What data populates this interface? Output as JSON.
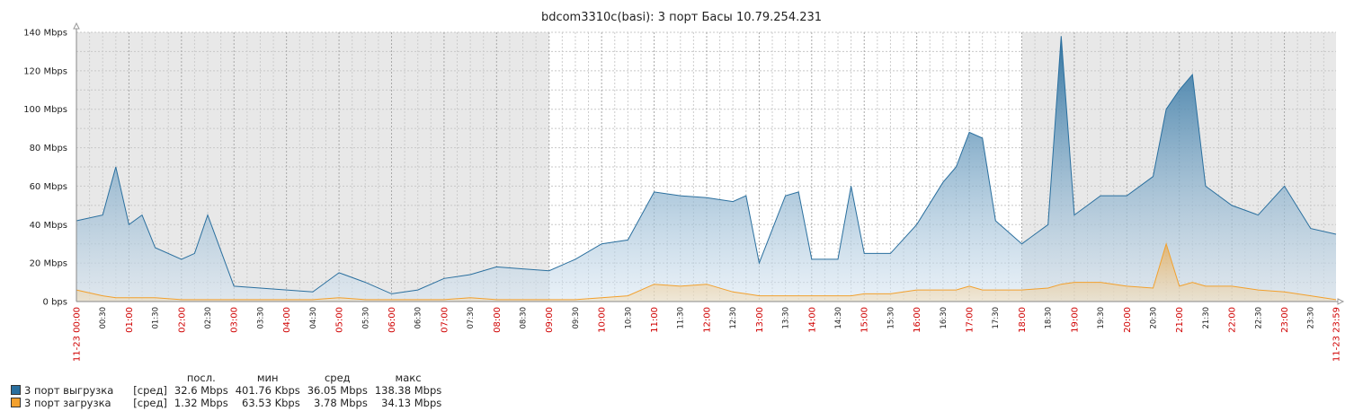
{
  "chart_data": {
    "type": "area",
    "title": "bdcom3310c(basi): 3 порт Басы 10.79.254.231",
    "y_unit": "Mbps",
    "ylim": [
      0,
      140
    ],
    "y_ticks": [
      {
        "value": 0,
        "label": "0 bps"
      },
      {
        "value": 20,
        "label": "20 Mbps"
      },
      {
        "value": 40,
        "label": "40 Mbps"
      },
      {
        "value": 60,
        "label": "60 Mbps"
      },
      {
        "value": 80,
        "label": "80 Mbps"
      },
      {
        "value": 100,
        "label": "100 Mbps"
      },
      {
        "value": 120,
        "label": "120 Mbps"
      },
      {
        "value": 140,
        "label": "140 Mbps"
      }
    ],
    "x_range": [
      "00:00",
      "23:59"
    ],
    "x_start_label": "11-23 00:00",
    "x_end_label": "11-23 23:59",
    "x_ticks": [
      "00:30",
      "01:00",
      "01:30",
      "02:00",
      "02:30",
      "03:00",
      "03:30",
      "04:00",
      "04:30",
      "05:00",
      "05:30",
      "06:00",
      "06:30",
      "07:00",
      "07:30",
      "08:00",
      "08:30",
      "09:00",
      "09:30",
      "10:00",
      "10:30",
      "11:00",
      "11:30",
      "12:00",
      "12:30",
      "13:00",
      "13:30",
      "14:00",
      "14:30",
      "15:00",
      "15:30",
      "16:00",
      "16:30",
      "17:00",
      "17:30",
      "18:00",
      "18:30",
      "19:00",
      "19:30",
      "20:00",
      "20:30",
      "21:00",
      "21:30",
      "22:00",
      "22:30",
      "23:00",
      "23:30"
    ],
    "non_working_time": [
      [
        "00:00",
        "09:00"
      ],
      [
        "18:00",
        "23:59"
      ]
    ],
    "grid": true,
    "series": [
      {
        "name": "3 порт выгрузка",
        "color": "#2a6f9e",
        "x": [
          "00:00",
          "00:30",
          "00:45",
          "01:00",
          "01:15",
          "01:30",
          "02:00",
          "02:15",
          "02:30",
          "03:00",
          "03:30",
          "04:00",
          "04:30",
          "05:00",
          "05:30",
          "06:00",
          "06:30",
          "07:00",
          "07:30",
          "08:00",
          "08:30",
          "09:00",
          "09:30",
          "10:00",
          "10:30",
          "11:00",
          "11:30",
          "12:00",
          "12:30",
          "12:45",
          "13:00",
          "13:30",
          "13:45",
          "14:00",
          "14:30",
          "14:45",
          "15:00",
          "15:30",
          "16:00",
          "16:30",
          "16:45",
          "17:00",
          "17:15",
          "17:30",
          "18:00",
          "18:30",
          "18:45",
          "19:00",
          "19:30",
          "20:00",
          "20:30",
          "20:45",
          "21:00",
          "21:15",
          "21:30",
          "22:00",
          "22:30",
          "23:00",
          "23:30",
          "23:59"
        ],
        "values": [
          42,
          45,
          70,
          40,
          45,
          28,
          22,
          25,
          45,
          8,
          7,
          6,
          5,
          15,
          10,
          4,
          6,
          12,
          14,
          18,
          17,
          16,
          22,
          30,
          32,
          57,
          55,
          54,
          52,
          55,
          20,
          55,
          57,
          22,
          22,
          60,
          25,
          25,
          40,
          62,
          70,
          88,
          85,
          42,
          30,
          40,
          138,
          45,
          55,
          55,
          65,
          100,
          110,
          118,
          60,
          50,
          45,
          60,
          38,
          35
        ]
      },
      {
        "name": "3 порт загрузка",
        "color": "#f2a02d",
        "x": [
          "00:00",
          "00:30",
          "00:45",
          "01:00",
          "01:15",
          "01:30",
          "02:00",
          "02:15",
          "02:30",
          "03:00",
          "03:30",
          "04:00",
          "04:30",
          "05:00",
          "05:30",
          "06:00",
          "06:30",
          "07:00",
          "07:30",
          "08:00",
          "08:30",
          "09:00",
          "09:30",
          "10:00",
          "10:30",
          "11:00",
          "11:30",
          "12:00",
          "12:30",
          "12:45",
          "13:00",
          "13:30",
          "13:45",
          "14:00",
          "14:30",
          "14:45",
          "15:00",
          "15:30",
          "16:00",
          "16:30",
          "16:45",
          "17:00",
          "17:15",
          "17:30",
          "18:00",
          "18:30",
          "18:45",
          "19:00",
          "19:30",
          "20:00",
          "20:30",
          "20:45",
          "21:00",
          "21:15",
          "21:30",
          "22:00",
          "22:30",
          "23:00",
          "23:30",
          "23:59"
        ],
        "values": [
          6,
          3,
          2,
          2,
          2,
          2,
          1,
          1,
          1,
          1,
          1,
          1,
          1,
          2,
          1,
          1,
          1,
          1,
          2,
          1,
          1,
          1,
          1,
          2,
          3,
          9,
          8,
          9,
          5,
          4,
          3,
          3,
          3,
          3,
          3,
          3,
          4,
          4,
          6,
          6,
          6,
          8,
          6,
          6,
          6,
          7,
          9,
          10,
          10,
          8,
          7,
          30,
          8,
          10,
          8,
          8,
          6,
          5,
          3,
          1
        ]
      }
    ]
  },
  "legend": {
    "headers": [
      "посл.",
      "мин",
      "сред",
      "макс"
    ],
    "rows": [
      {
        "name": "3 порт выгрузка",
        "func": "[сред]",
        "last": "32.6 Mbps",
        "min": "401.76 Kbps",
        "avg": "36.05 Mbps",
        "max": "138.38 Mbps",
        "color": "#2a6f9e"
      },
      {
        "name": "3 порт загрузка",
        "func": "[сред]",
        "last": "1.32 Mbps",
        "min": "63.53 Kbps",
        "avg": "3.78 Mbps",
        "max": "34.13 Mbps",
        "color": "#f2a02d"
      }
    ]
  }
}
